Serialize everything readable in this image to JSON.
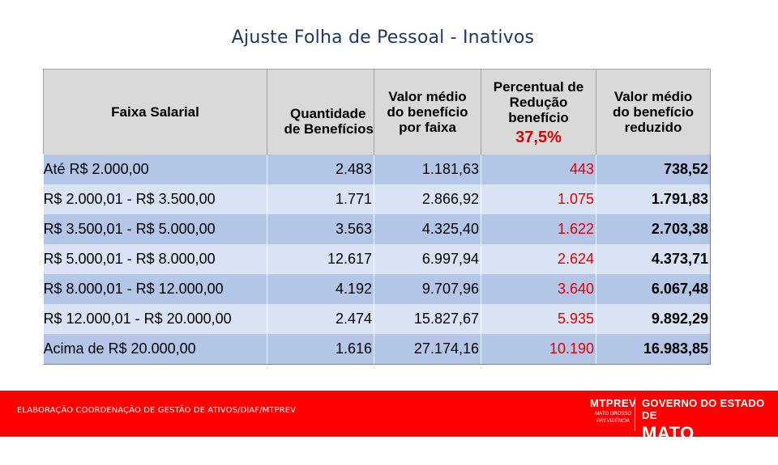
{
  "title": "Ajuste Folha de Pessoal - Inativos",
  "table": {
    "headers": {
      "faixa": "Faixa Salarial",
      "quantidade": [
        "Quantidade",
        "de Benefícios"
      ],
      "valor_medio": [
        "Valor médio",
        "do benefício",
        "por faixa"
      ],
      "percentual": [
        "Percentual de",
        "Redução",
        "benefício"
      ],
      "percentual_value": "37,5%",
      "valor_reduzido": [
        "Valor médio",
        "do benefício",
        "reduzido"
      ]
    },
    "rows": [
      {
        "faixa": "Até R$ 2.000,00",
        "quantidade": "2.483",
        "valor_medio": "1.181,63",
        "reducao": "443",
        "reduzido": "738,52"
      },
      {
        "faixa": "R$ 2.000,01 - R$ 3.500,00",
        "quantidade": "1.771",
        "valor_medio": "2.866,92",
        "reducao": "1.075",
        "reduzido": "1.791,83"
      },
      {
        "faixa": "R$ 3.500,01 - R$ 5.000,00",
        "quantidade": "3.563",
        "valor_medio": "4.325,40",
        "reducao": "1.622",
        "reduzido": "2.703,38"
      },
      {
        "faixa": "R$ 5.000,01 - R$ 8.000,00",
        "quantidade": "12.617",
        "valor_medio": "6.997,94",
        "reducao": "2.624",
        "reduzido": "4.373,71"
      },
      {
        "faixa": "R$ 8.000,01 - R$ 12.000,00",
        "quantidade": "4.192",
        "valor_medio": "9.707,96",
        "reducao": "3.640",
        "reduzido": "6.067,48"
      },
      {
        "faixa": "R$ 12.000,01 - R$ 20.000,00",
        "quantidade": "2.474",
        "valor_medio": "15.827,67",
        "reducao": "5.935",
        "reduzido": "9.892,29"
      },
      {
        "faixa": "Acima de R$ 20.000,00",
        "quantidade": "1.616",
        "valor_medio": "27.174,16",
        "reducao": "10.190",
        "reduzido": "16.983,85"
      }
    ]
  },
  "footer": {
    "text": "ELABORAÇÃO COORDENAÇÃO DE GESTÃO DE ATIVOS/DIAF/MTPREV",
    "logo_mtprev": "MTPREV",
    "logo_mtprev_sub": "MATO GROSSO",
    "logo_mtprev_tag": "PREVIDÊNCIA",
    "logo_gov_top": "GOVERNO DO ESTADO DE",
    "logo_gov_bottom": "MATO GROSSO"
  },
  "colors": {
    "title": "#1f3864",
    "header_bg": "#d9d9d9",
    "row_dark": "#b4c6e7",
    "row_light": "#dae3f3",
    "accent_red": "#e00000",
    "footer_bg": "#ff0000"
  }
}
